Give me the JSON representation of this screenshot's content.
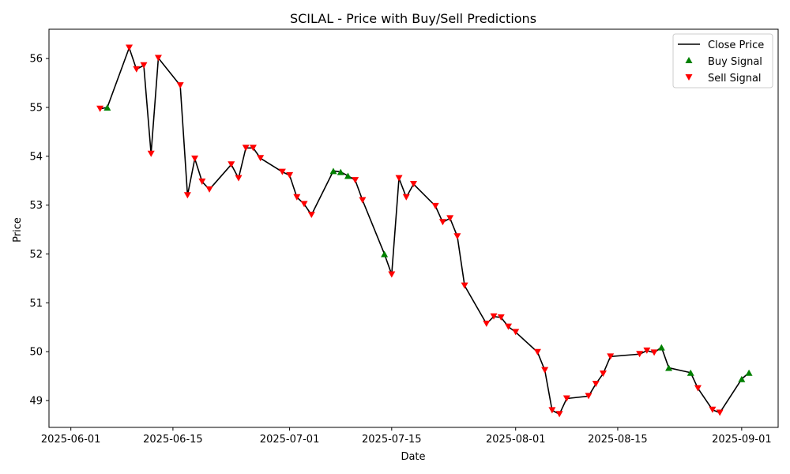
{
  "chart_data": {
    "type": "line",
    "title": "SCILAL - Price with Buy/Sell Predictions",
    "xlabel": "Date",
    "ylabel": "Price",
    "xlim": [
      "2025-05-29",
      "2025-09-06"
    ],
    "ylim": [
      48.45,
      56.6
    ],
    "x_ticks": [
      "2025-06-01",
      "2025-06-15",
      "2025-07-01",
      "2025-07-15",
      "2025-08-01",
      "2025-08-15",
      "2025-09-01"
    ],
    "y_ticks": [
      49,
      50,
      51,
      52,
      53,
      54,
      55,
      56
    ],
    "grid": false,
    "legend_position": "top-right",
    "legend": [
      "Close Price",
      "Buy Signal",
      "Sell Signal"
    ],
    "colors": {
      "line": "#000000",
      "buy": "#008000",
      "sell": "#ff0000"
    },
    "series": [
      {
        "name": "Close Price",
        "x": [
          "2025-06-05",
          "2025-06-06",
          "2025-06-09",
          "2025-06-10",
          "2025-06-11",
          "2025-06-12",
          "2025-06-13",
          "2025-06-16",
          "2025-06-17",
          "2025-06-18",
          "2025-06-19",
          "2025-06-20",
          "2025-06-23",
          "2025-06-24",
          "2025-06-25",
          "2025-06-26",
          "2025-06-27",
          "2025-06-30",
          "2025-07-01",
          "2025-07-02",
          "2025-07-03",
          "2025-07-04",
          "2025-07-07",
          "2025-07-08",
          "2025-07-09",
          "2025-07-10",
          "2025-07-11",
          "2025-07-14",
          "2025-07-15",
          "2025-07-16",
          "2025-07-17",
          "2025-07-18",
          "2025-07-21",
          "2025-07-22",
          "2025-07-23",
          "2025-07-24",
          "2025-07-25",
          "2025-07-28",
          "2025-07-29",
          "2025-07-30",
          "2025-07-31",
          "2025-08-01",
          "2025-08-04",
          "2025-08-05",
          "2025-08-06",
          "2025-08-07",
          "2025-08-08",
          "2025-08-11",
          "2025-08-12",
          "2025-08-13",
          "2025-08-14",
          "2025-08-18",
          "2025-08-19",
          "2025-08-20",
          "2025-08-21",
          "2025-08-22",
          "2025-08-25",
          "2025-08-26",
          "2025-08-28",
          "2025-08-29",
          "2025-09-01",
          "2025-09-02"
        ],
        "values": [
          54.97,
          55.0,
          56.22,
          55.78,
          55.86,
          54.05,
          56.01,
          55.45,
          53.2,
          53.95,
          53.48,
          53.32,
          53.83,
          53.55,
          54.17,
          54.17,
          53.96,
          53.68,
          53.61,
          53.16,
          53.02,
          52.8,
          53.7,
          53.68,
          53.6,
          53.51,
          53.1,
          52.0,
          51.58,
          53.55,
          53.16,
          53.43,
          52.98,
          52.65,
          52.73,
          52.36,
          51.35,
          50.57,
          50.72,
          50.7,
          50.51,
          50.4,
          49.99,
          49.62,
          48.8,
          48.72,
          49.04,
          49.09,
          49.34,
          49.55,
          49.9,
          49.95,
          50.02,
          49.98,
          50.09,
          49.67,
          49.57,
          49.25,
          48.81,
          48.75,
          49.44,
          49.57
        ]
      },
      {
        "name": "Buy Signal",
        "x": [
          "2025-06-06",
          "2025-07-07",
          "2025-07-08",
          "2025-07-09",
          "2025-07-14",
          "2025-08-21",
          "2025-08-22",
          "2025-08-25",
          "2025-09-01",
          "2025-09-02"
        ],
        "values": [
          55.0,
          53.7,
          53.68,
          53.6,
          52.0,
          50.09,
          49.67,
          49.57,
          49.44,
          49.57
        ]
      },
      {
        "name": "Sell Signal",
        "x": [
          "2025-06-05",
          "2025-06-09",
          "2025-06-10",
          "2025-06-11",
          "2025-06-12",
          "2025-06-13",
          "2025-06-16",
          "2025-06-17",
          "2025-06-18",
          "2025-06-19",
          "2025-06-20",
          "2025-06-23",
          "2025-06-24",
          "2025-06-25",
          "2025-06-26",
          "2025-06-27",
          "2025-06-30",
          "2025-07-01",
          "2025-07-02",
          "2025-07-03",
          "2025-07-04",
          "2025-07-10",
          "2025-07-11",
          "2025-07-15",
          "2025-07-16",
          "2025-07-17",
          "2025-07-18",
          "2025-07-21",
          "2025-07-22",
          "2025-07-23",
          "2025-07-24",
          "2025-07-25",
          "2025-07-28",
          "2025-07-29",
          "2025-07-30",
          "2025-07-31",
          "2025-08-01",
          "2025-08-04",
          "2025-08-05",
          "2025-08-06",
          "2025-08-07",
          "2025-08-08",
          "2025-08-11",
          "2025-08-12",
          "2025-08-13",
          "2025-08-14",
          "2025-08-18",
          "2025-08-19",
          "2025-08-20",
          "2025-08-26",
          "2025-08-28",
          "2025-08-29"
        ],
        "values": [
          54.97,
          56.22,
          55.78,
          55.86,
          54.05,
          56.01,
          55.45,
          53.2,
          53.95,
          53.48,
          53.32,
          53.83,
          53.55,
          54.17,
          54.17,
          53.96,
          53.68,
          53.61,
          53.16,
          53.02,
          52.8,
          53.51,
          53.1,
          51.58,
          53.55,
          53.16,
          53.43,
          52.98,
          52.65,
          52.73,
          52.36,
          51.35,
          50.57,
          50.72,
          50.7,
          50.51,
          50.4,
          49.99,
          49.62,
          48.8,
          48.72,
          49.04,
          49.09,
          49.34,
          49.55,
          49.9,
          49.95,
          50.02,
          49.98,
          49.25,
          48.81,
          48.75
        ]
      }
    ]
  }
}
